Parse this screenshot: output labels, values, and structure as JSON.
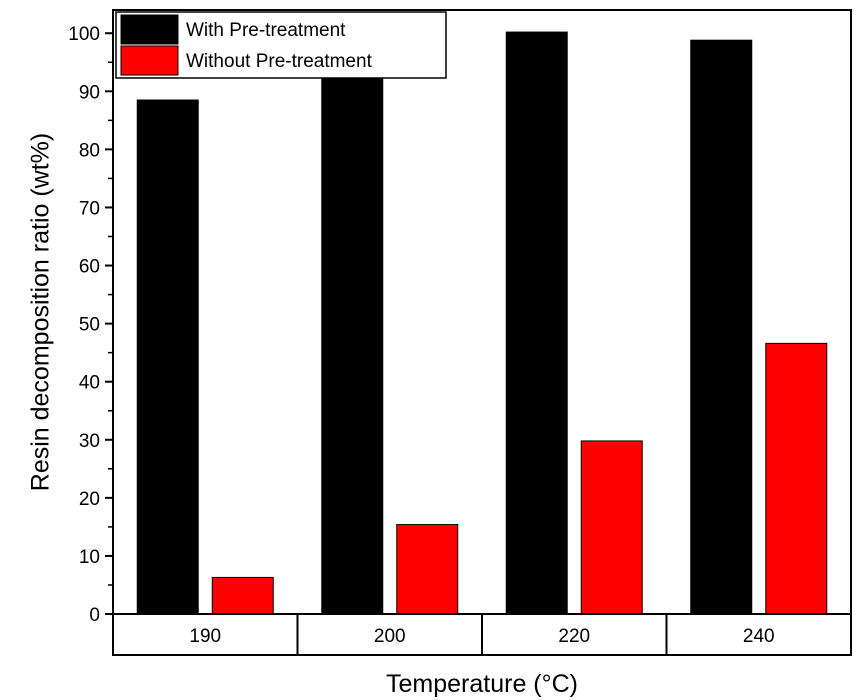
{
  "chart_data": {
    "type": "bar",
    "title": "",
    "xlabel": "Temperature (°C)",
    "ylabel": "Resin decomposition ratio (wt%)",
    "categories": [
      "190",
      "200",
      "220",
      "240"
    ],
    "series": [
      {
        "name": "With Pre-treatment",
        "color": "#000000",
        "values": [
          88.5,
          92.5,
          100.2,
          98.8
        ]
      },
      {
        "name": "Without Pre-treatment",
        "color": "#ff0000",
        "values": [
          6.3,
          15.4,
          29.8,
          46.6
        ]
      }
    ],
    "ylim": [
      0,
      104
    ],
    "yticks": [
      0,
      10,
      20,
      30,
      40,
      50,
      60,
      70,
      80,
      90,
      100
    ],
    "grid": false,
    "legend_position": "top-left"
  }
}
